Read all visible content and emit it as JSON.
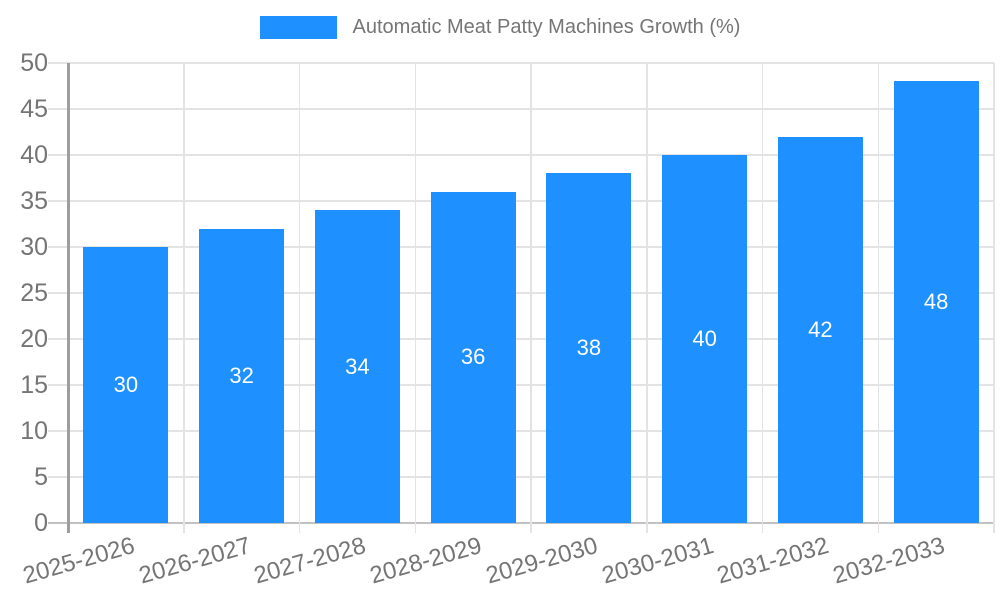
{
  "chart_data": {
    "type": "bar",
    "title": "Automatic Meat Patty Machines Growth (%)",
    "categories": [
      "2025-2026",
      "2026-2027",
      "2027-2028",
      "2028-2029",
      "2029-2030",
      "2030-2031",
      "2031-2032",
      "2032-2033"
    ],
    "values": [
      30,
      32,
      34,
      36,
      38,
      40,
      42,
      48
    ],
    "bar_value_labels": [
      "30",
      "32",
      "34",
      "36",
      "38",
      "40",
      "42",
      "48"
    ],
    "xlabel": "",
    "ylabel": "",
    "ylim": [
      0,
      50
    ],
    "yticks": [
      0,
      5,
      10,
      15,
      20,
      25,
      30,
      35,
      40,
      45,
      50
    ],
    "grid": {
      "horizontal": true,
      "vertical": true
    },
    "legend_position": "top-center",
    "x_label_rotation_deg": -16,
    "colors": {
      "bar": "#1E90FF",
      "axis_text": "#757575",
      "grid_line": "#E3E3E3",
      "y_axis_line": "#9E9E9E",
      "baseline": "#C2C2C2",
      "bar_label_text": "#FFFFFF",
      "legend_text": "#757575"
    }
  }
}
